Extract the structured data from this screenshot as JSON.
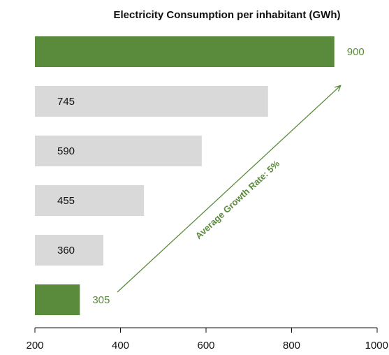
{
  "chart_data": {
    "type": "bar",
    "orientation": "horizontal",
    "title": "Electricity Consumption per inhabitant (GWh)",
    "xlabel": "",
    "ylabel": "",
    "values": [
      900,
      745,
      590,
      455,
      360,
      305
    ],
    "value_labels": [
      "900",
      "745",
      "590",
      "455",
      "360",
      "305"
    ],
    "highlighted": [
      true,
      false,
      false,
      false,
      false,
      true
    ],
    "xlim": [
      200,
      1000
    ],
    "xticks": [
      200,
      400,
      600,
      800,
      1000
    ],
    "xtick_labels": [
      "200",
      "400",
      "600",
      "800",
      "1000"
    ],
    "grid": false,
    "legend": "none",
    "annotation": {
      "text": "Average Growth Rate: 5%",
      "arrow": "from bottom bar toward top bar"
    },
    "colors": {
      "highlight": "#5a8a3c",
      "normal": "#d9d9d9",
      "annotation": "#5a8a3c",
      "axis": "#111111"
    }
  }
}
